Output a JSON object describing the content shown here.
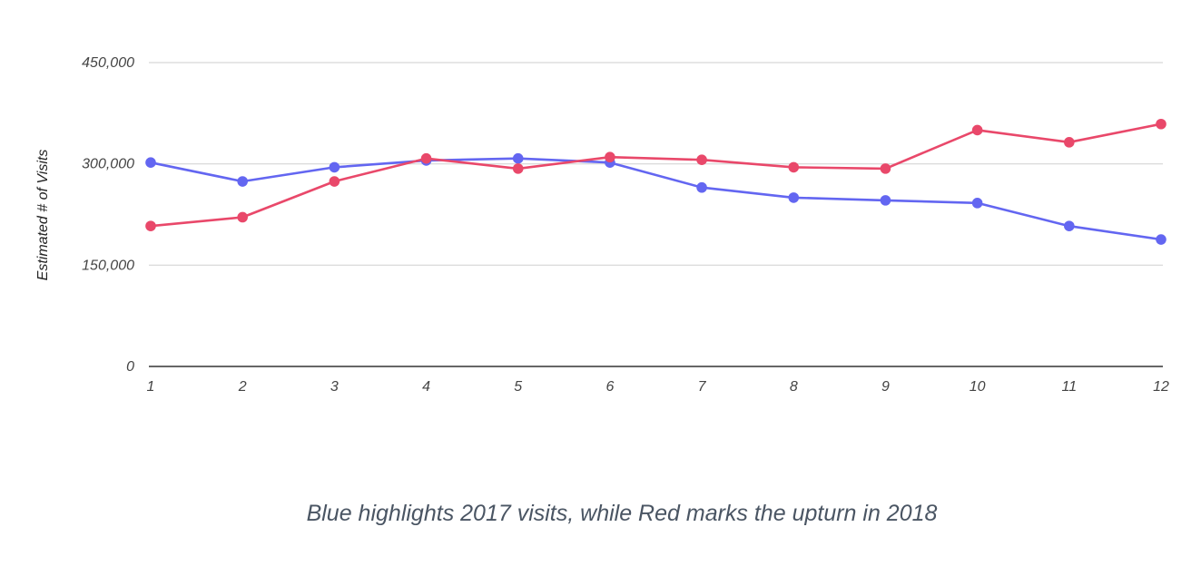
{
  "chart_data": {
    "type": "line",
    "x": [
      1,
      2,
      3,
      4,
      5,
      6,
      7,
      8,
      9,
      10,
      11,
      12
    ],
    "xtick_labels": [
      "1",
      "2",
      "3",
      "4",
      "5",
      "6",
      "7",
      "8",
      "9",
      "10",
      "11",
      "12"
    ],
    "series": [
      {
        "color": "#6366f1",
        "values": [
          302000,
          274000,
          295000,
          305000,
          308000,
          302000,
          265000,
          250000,
          246000,
          242000,
          208000,
          188000
        ]
      },
      {
        "color": "#e9486a",
        "values": [
          208000,
          221000,
          274000,
          308000,
          293000,
          310000,
          306000,
          295000,
          293000,
          350000,
          332000,
          359000
        ]
      }
    ],
    "ylabel": "Estimated # of Visits",
    "xlabel": "",
    "ylim": [
      0,
      450000
    ],
    "yticks": [
      0,
      150000,
      300000,
      450000
    ],
    "ytick_labels": [
      "0",
      "150,000",
      "300,000",
      "450,000"
    ],
    "grid": true,
    "caption": "Blue highlights 2017 visits, while Red marks the upturn in 2018"
  }
}
